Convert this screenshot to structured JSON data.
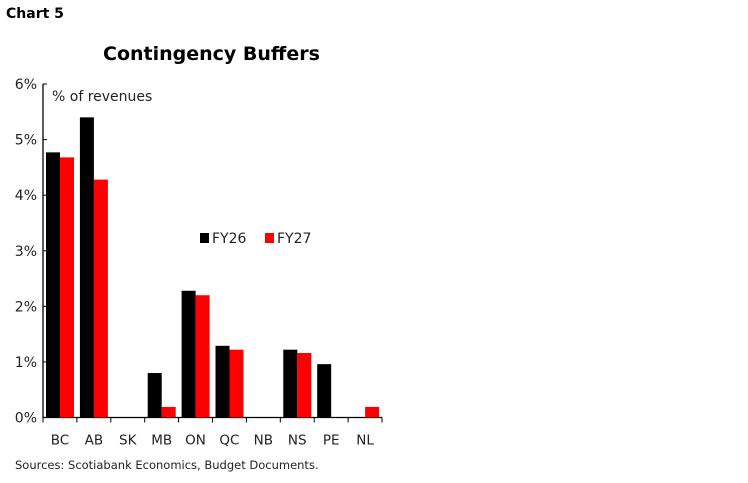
{
  "header": {
    "chart_number": "Chart 5"
  },
  "footer": {
    "source": "Sources: Scotiabank Economics, Budget Documents."
  },
  "chart_data": {
    "type": "bar",
    "title": "Contingency Buffers",
    "ylabel": "% of revenues",
    "xlabel": "",
    "categories": [
      "BC",
      "AB",
      "SK",
      "MB",
      "ON",
      "QC",
      "NB",
      "NS",
      "PE",
      "NL"
    ],
    "series": [
      {
        "name": "FY26",
        "color": "#000000",
        "values": [
          4.77,
          5.4,
          0,
          0.8,
          2.28,
          1.29,
          0,
          1.22,
          0.96,
          0
        ]
      },
      {
        "name": "FY27",
        "color": "#ff0000",
        "values": [
          4.68,
          4.28,
          0,
          0.19,
          2.2,
          1.22,
          0,
          1.16,
          0,
          0.19
        ]
      }
    ],
    "ylim": [
      0,
      6
    ],
    "yticks": [
      "0%",
      "1%",
      "2%",
      "3%",
      "4%",
      "5%",
      "6%"
    ],
    "grid": false,
    "legend": "center"
  }
}
